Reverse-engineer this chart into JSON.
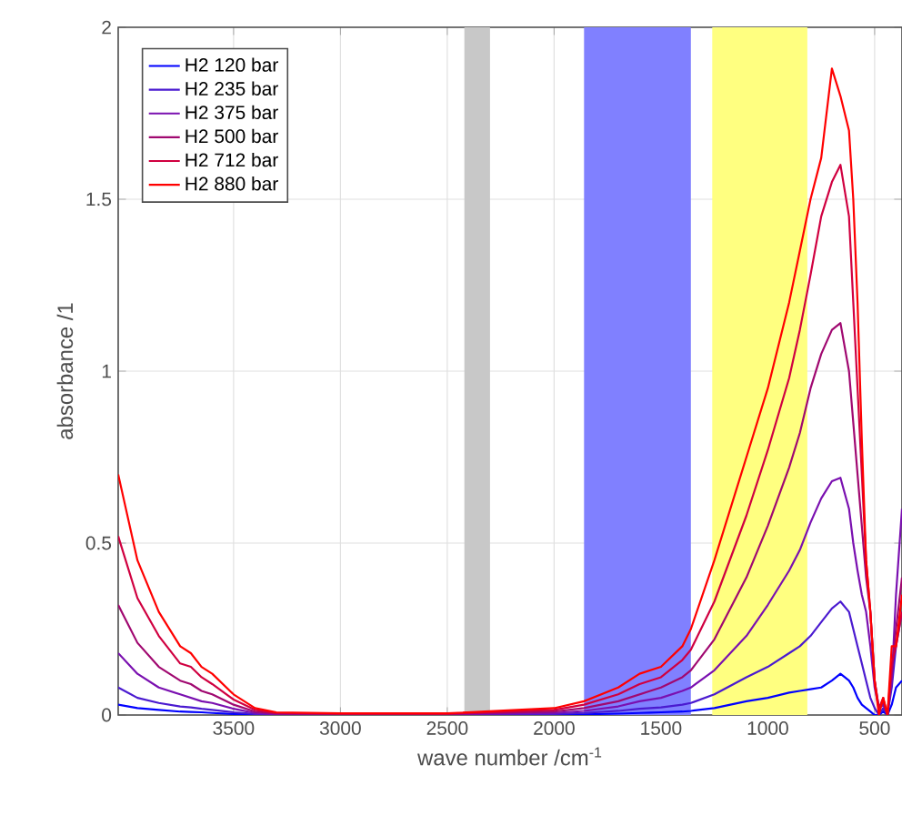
{
  "chart_data": {
    "type": "line",
    "xlabel": "wave number /cm$^{-1}$",
    "ylabel": "absorbance /1",
    "x": [
      4040,
      3950,
      3850,
      3750,
      3700,
      3650,
      3600,
      3500,
      3400,
      3300,
      3000,
      2500,
      2000,
      1860,
      1700,
      1600,
      1550,
      1500,
      1400,
      1360,
      1250,
      1100,
      1000,
      900,
      850,
      800,
      750,
      700,
      660,
      620,
      600,
      580,
      560,
      540,
      520,
      500,
      480,
      460,
      440,
      420,
      400,
      372
    ],
    "series": [
      {
        "name": "H2 120 bar",
        "color": "#0000ff",
        "values": [
          0.03,
          0.02,
          0.015,
          0.01,
          0.009,
          0.008,
          0.006,
          0.003,
          0.001,
          0.0,
          0.0,
          0.0,
          0.001,
          0.002,
          0.004,
          0.006,
          0.007,
          0.008,
          0.01,
          0.012,
          0.02,
          0.04,
          0.05,
          0.065,
          0.07,
          0.075,
          0.08,
          0.1,
          0.12,
          0.1,
          0.08,
          0.05,
          0.03,
          0.02,
          0.01,
          0.0,
          0.0,
          0.01,
          0.0,
          0.03,
          0.08,
          0.1
        ]
      },
      {
        "name": "H2 235 bar",
        "color": "#4a1ad0",
        "values": [
          0.08,
          0.05,
          0.035,
          0.025,
          0.022,
          0.018,
          0.015,
          0.008,
          0.003,
          0.001,
          0.001,
          0.001,
          0.003,
          0.006,
          0.012,
          0.018,
          0.02,
          0.022,
          0.03,
          0.035,
          0.06,
          0.11,
          0.14,
          0.18,
          0.2,
          0.23,
          0.27,
          0.31,
          0.33,
          0.3,
          0.25,
          0.2,
          0.15,
          0.1,
          0.05,
          0.02,
          0.0,
          0.02,
          0.0,
          0.08,
          0.2,
          0.3
        ]
      },
      {
        "name": "H2 375 bar",
        "color": "#7a10b0",
        "values": [
          0.18,
          0.12,
          0.08,
          0.06,
          0.05,
          0.04,
          0.035,
          0.018,
          0.006,
          0.002,
          0.002,
          0.002,
          0.006,
          0.012,
          0.025,
          0.04,
          0.045,
          0.05,
          0.07,
          0.08,
          0.13,
          0.23,
          0.32,
          0.42,
          0.48,
          0.56,
          0.63,
          0.68,
          0.69,
          0.6,
          0.5,
          0.42,
          0.35,
          0.3,
          0.2,
          0.08,
          0.02,
          0.03,
          0.0,
          0.1,
          0.35,
          0.6
        ]
      },
      {
        "name": "H2 500 bar",
        "color": "#a00870",
        "values": [
          0.32,
          0.21,
          0.14,
          0.1,
          0.09,
          0.07,
          0.06,
          0.03,
          0.01,
          0.004,
          0.003,
          0.003,
          0.01,
          0.02,
          0.04,
          0.06,
          0.07,
          0.08,
          0.11,
          0.13,
          0.22,
          0.4,
          0.55,
          0.72,
          0.82,
          0.95,
          1.05,
          1.12,
          1.14,
          1.0,
          0.85,
          0.7,
          0.55,
          0.4,
          0.3,
          0.1,
          0.02,
          0.04,
          0.0,
          0.12,
          0.25,
          0.4
        ]
      },
      {
        "name": "H2 712 bar",
        "color": "#d00040",
        "values": [
          0.52,
          0.34,
          0.23,
          0.15,
          0.14,
          0.11,
          0.09,
          0.045,
          0.015,
          0.006,
          0.004,
          0.004,
          0.015,
          0.03,
          0.06,
          0.09,
          0.1,
          0.11,
          0.16,
          0.19,
          0.33,
          0.58,
          0.77,
          0.98,
          1.12,
          1.28,
          1.45,
          1.55,
          1.6,
          1.45,
          1.2,
          0.95,
          0.7,
          0.45,
          0.3,
          0.1,
          0.02,
          0.05,
          0.0,
          0.15,
          0.2,
          0.3
        ]
      },
      {
        "name": "H2 880 bar",
        "color": "#ff0000",
        "values": [
          0.7,
          0.45,
          0.3,
          0.2,
          0.18,
          0.14,
          0.12,
          0.06,
          0.02,
          0.008,
          0.005,
          0.005,
          0.02,
          0.04,
          0.08,
          0.12,
          0.13,
          0.14,
          0.2,
          0.25,
          0.45,
          0.75,
          0.95,
          1.2,
          1.35,
          1.5,
          1.62,
          1.88,
          1.8,
          1.7,
          1.5,
          1.2,
          0.8,
          0.45,
          0.3,
          0.1,
          0.0,
          0.05,
          0.0,
          0.2,
          0.2,
          0.35
        ]
      }
    ],
    "bands": [
      {
        "axis": "x",
        "from": 2420,
        "to": 2300,
        "color": "#c8c8c8"
      },
      {
        "axis": "x",
        "from": 1860,
        "to": 1360,
        "color": "#8080ff"
      },
      {
        "axis": "x",
        "from": 1260,
        "to": 815,
        "color": "#ffff80"
      }
    ],
    "xlim": [
      4040,
      372
    ],
    "ylim": [
      0,
      2
    ],
    "xticks": [
      3500,
      3000,
      2500,
      2000,
      1500,
      1000,
      500
    ],
    "yticks": [
      0,
      0.5,
      1,
      1.5,
      2
    ],
    "grid": true,
    "legend": "top left",
    "line_style": "solid",
    "marker": "none"
  }
}
